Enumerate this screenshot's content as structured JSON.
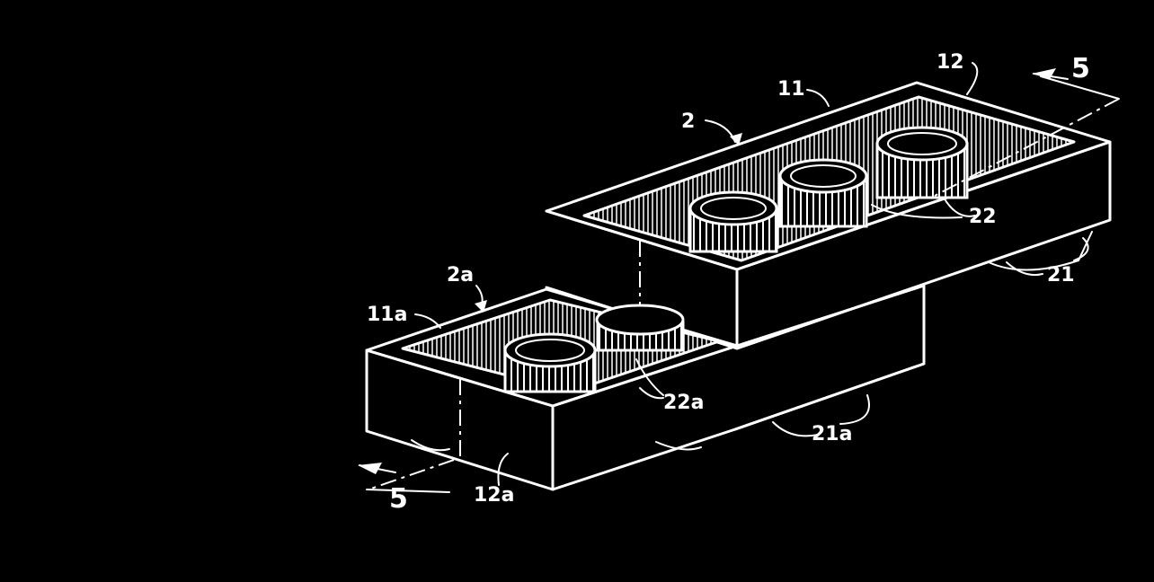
{
  "labels": {
    "l2": "2",
    "l11": "11",
    "l12": "12",
    "l5_top": "5",
    "l22": "22",
    "l21": "21",
    "l2a": "2a",
    "l11a": "11a",
    "l22a": "22a",
    "l21a": "21a",
    "l12a": "12a",
    "l5_bottom": "5"
  }
}
